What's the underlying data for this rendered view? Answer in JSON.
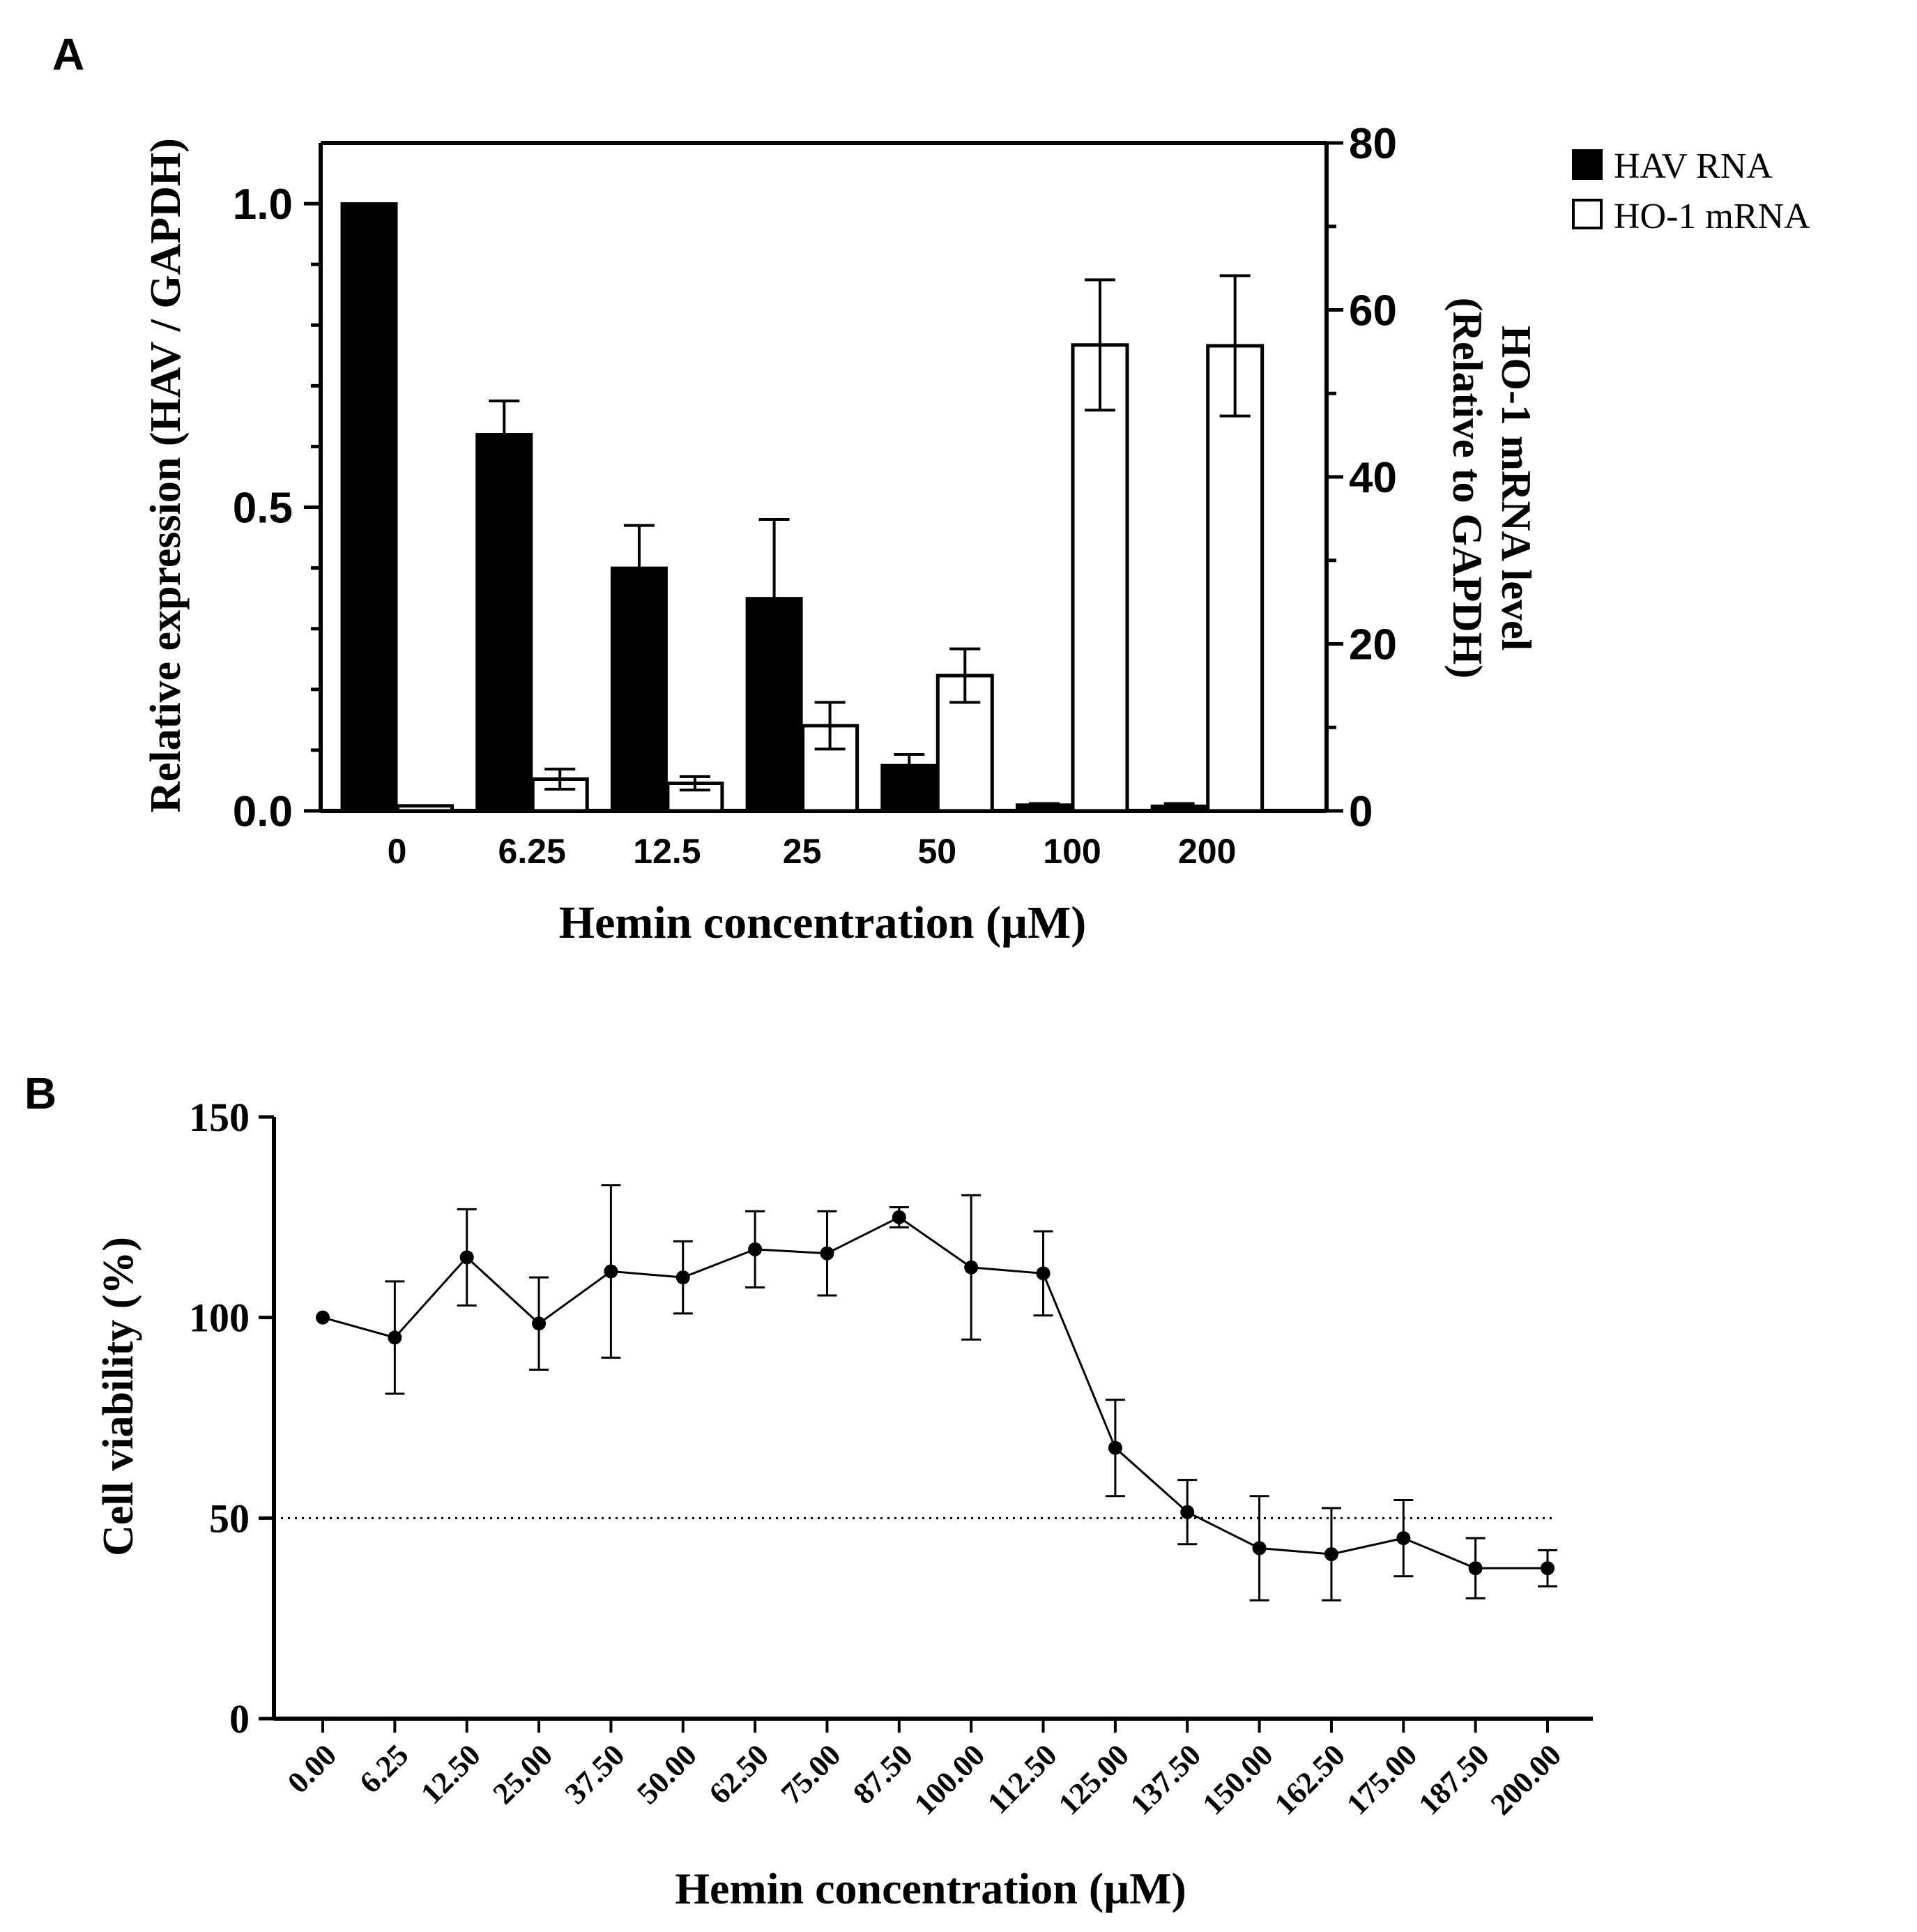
{
  "chart_data": [
    {
      "panel_label": "A",
      "type": "bar",
      "title": "",
      "xlabel": "Hemin concentration (µM)",
      "ylabel": "Relative expression (HAV / GAPDH)",
      "ylabel_right": [
        "HO-1 mRNA level",
        "(Relative to GAPDH)"
      ],
      "categories": [
        "0",
        "6.25",
        "12.5",
        "25",
        "50",
        "100",
        "200"
      ],
      "ylim": [
        0,
        1.1
      ],
      "yticks": [
        0.0,
        0.5,
        1.0
      ],
      "ytick_labels": [
        "0.0",
        "0.5",
        "1.0"
      ],
      "ylim_right": [
        0,
        80
      ],
      "yticks_right": [
        0,
        20,
        40,
        60,
        80
      ],
      "ytick_labels_right": [
        "0",
        "20",
        "40",
        "60",
        "80"
      ],
      "legend_position": "top-right",
      "series": [
        {
          "name": "HAV RNA",
          "axis": "left",
          "fill": "#000000",
          "values": [
            1.0,
            0.62,
            0.4,
            0.35,
            0.075,
            0.01,
            0.008
          ],
          "errors": [
            0,
            0.055,
            0.07,
            0.13,
            0.018,
            0.002,
            0.004
          ]
        },
        {
          "name": "HO-1 mRNA",
          "axis": "right",
          "fill": "#ffffff",
          "values": [
            0.6,
            3.8,
            3.3,
            10.2,
            16.2,
            55.8,
            55.7
          ],
          "errors": [
            0,
            1.2,
            0.8,
            2.8,
            3.2,
            7.8,
            8.4
          ]
        }
      ]
    },
    {
      "panel_label": "B",
      "type": "line",
      "title": "",
      "xlabel": "Hemin concentration (µM)",
      "ylabel": "Cell viability (%)",
      "x_tick_labels": [
        "0.00",
        "6.25",
        "12.50",
        "25.00",
        "37.50",
        "50.00",
        "62.50",
        "75.00",
        "87.50",
        "100.00",
        "112.50",
        "125.00",
        "137.50",
        "150.00",
        "162.50",
        "175.00",
        "187.50",
        "200.00"
      ],
      "ylim": [
        0,
        150
      ],
      "yticks": [
        0,
        50,
        100,
        150
      ],
      "ytick_labels": [
        "0",
        "50",
        "100",
        "150"
      ],
      "reference_line": 50,
      "series": [
        {
          "name": "Cell viability",
          "values": [
            100,
            95,
            115,
            98.5,
            111.5,
            110,
            117,
            116,
            125,
            112.5,
            111,
            67.5,
            51.5,
            42.5,
            41,
            45,
            37.5,
            37.5
          ],
          "errors": [
            0,
            14,
            12,
            11.5,
            21.5,
            9,
            9.5,
            10.5,
            2.5,
            18,
            10.5,
            12,
            8,
            13,
            11.5,
            9.5,
            7.5,
            4.5
          ]
        }
      ]
    }
  ]
}
